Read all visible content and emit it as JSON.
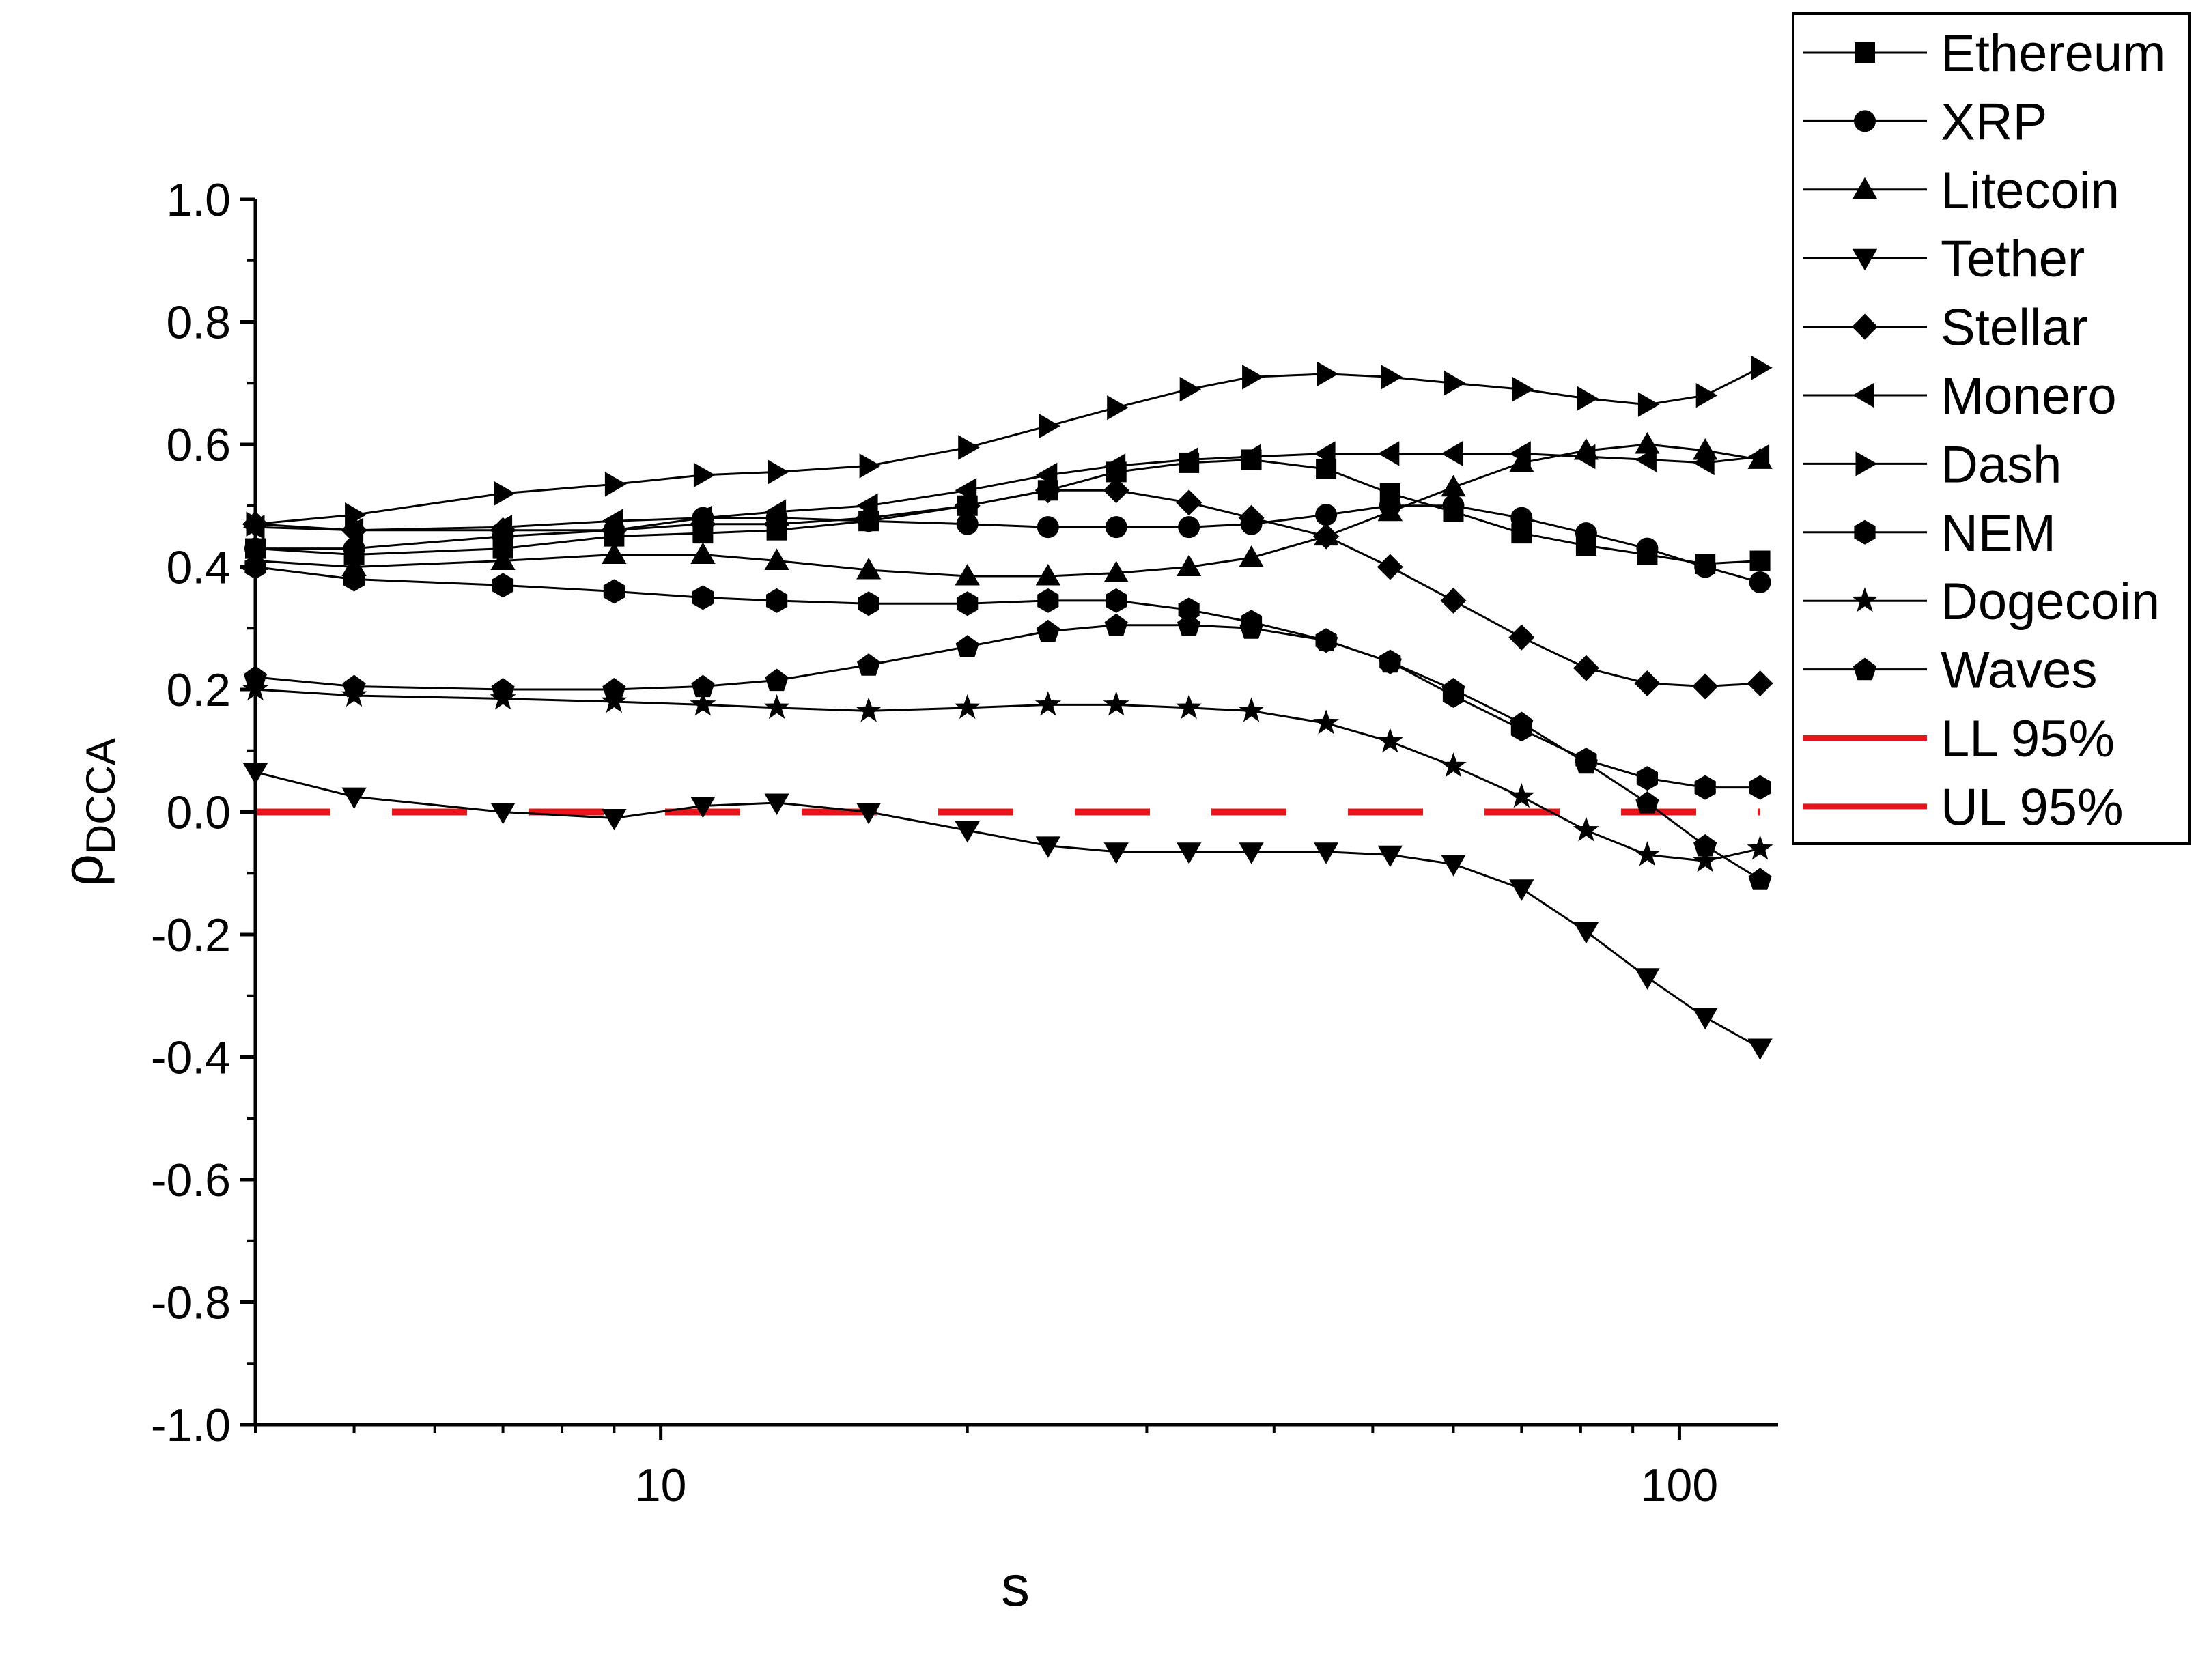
{
  "chart_data": {
    "type": "line",
    "xlabel": "s",
    "ylabel": {
      "main": "ρ",
      "sub": "DCCA"
    },
    "x_scale": "log",
    "xlim": [
      4,
      125
    ],
    "ylim": [
      -1.0,
      1.0
    ],
    "grid": false,
    "legend_position": "top-right",
    "x_ticks": [
      {
        "value": 10,
        "label": "10"
      },
      {
        "value": 100,
        "label": "100"
      }
    ],
    "y_ticks": [
      {
        "value": 1.0,
        "label": "1.0"
      },
      {
        "value": 0.8,
        "label": "0.8"
      },
      {
        "value": 0.6,
        "label": "0.6"
      },
      {
        "value": 0.4,
        "label": "0.4"
      },
      {
        "value": 0.2,
        "label": "0.2"
      },
      {
        "value": 0.0,
        "label": "0.0"
      },
      {
        "value": -0.2,
        "label": "-0.2"
      },
      {
        "value": -0.4,
        "label": "-0.4"
      },
      {
        "value": -0.6,
        "label": "-0.6"
      },
      {
        "value": -0.8,
        "label": "-0.8"
      },
      {
        "value": -1.0,
        "label": "-1.0"
      }
    ],
    "x": [
      4,
      5,
      7,
      9,
      11,
      13,
      16,
      20,
      24,
      28,
      33,
      38,
      45,
      52,
      60,
      70,
      81,
      93,
      106,
      120
    ],
    "series": [
      {
        "name": "Ethereum",
        "marker": "square",
        "color": "#000000",
        "values": [
          0.43,
          0.42,
          0.43,
          0.45,
          0.455,
          0.46,
          0.475,
          0.5,
          0.525,
          0.555,
          0.57,
          0.575,
          0.56,
          0.52,
          0.49,
          0.455,
          0.435,
          0.42,
          0.405,
          0.41
        ]
      },
      {
        "name": "XRP",
        "marker": "circle",
        "color": "#000000",
        "values": [
          0.43,
          0.43,
          0.45,
          0.46,
          0.48,
          0.48,
          0.475,
          0.47,
          0.465,
          0.465,
          0.465,
          0.47,
          0.485,
          0.5,
          0.5,
          0.48,
          0.455,
          0.43,
          0.4,
          0.375
        ]
      },
      {
        "name": "Litecoin",
        "marker": "triangle-up",
        "color": "#000000",
        "values": [
          0.41,
          0.4,
          0.41,
          0.42,
          0.42,
          0.41,
          0.395,
          0.385,
          0.385,
          0.39,
          0.4,
          0.415,
          0.45,
          0.49,
          0.53,
          0.57,
          0.59,
          0.6,
          0.59,
          0.575
        ]
      },
      {
        "name": "Tether",
        "marker": "triangle-down",
        "color": "#000000",
        "values": [
          0.065,
          0.025,
          0.0,
          -0.01,
          0.01,
          0.015,
          0.0,
          -0.03,
          -0.055,
          -0.065,
          -0.065,
          -0.065,
          -0.065,
          -0.07,
          -0.085,
          -0.125,
          -0.195,
          -0.27,
          -0.335,
          -0.385
        ]
      },
      {
        "name": "Stellar",
        "marker": "diamond",
        "color": "#000000",
        "values": [
          0.47,
          0.46,
          0.46,
          0.46,
          0.47,
          0.47,
          0.48,
          0.5,
          0.525,
          0.525,
          0.505,
          0.48,
          0.45,
          0.4,
          0.345,
          0.285,
          0.235,
          0.21,
          0.205,
          0.21
        ]
      },
      {
        "name": "Monero",
        "marker": "triangle-left",
        "color": "#000000",
        "values": [
          0.465,
          0.46,
          0.465,
          0.475,
          0.48,
          0.49,
          0.5,
          0.525,
          0.55,
          0.565,
          0.575,
          0.58,
          0.585,
          0.585,
          0.585,
          0.585,
          0.58,
          0.575,
          0.57,
          0.58
        ]
      },
      {
        "name": "Dash",
        "marker": "triangle-right",
        "color": "#000000",
        "values": [
          0.47,
          0.485,
          0.52,
          0.535,
          0.55,
          0.555,
          0.565,
          0.595,
          0.63,
          0.66,
          0.69,
          0.71,
          0.715,
          0.71,
          0.7,
          0.69,
          0.675,
          0.665,
          0.68,
          0.725
        ]
      },
      {
        "name": "NEM",
        "marker": "hexagon",
        "color": "#000000",
        "values": [
          0.4,
          0.38,
          0.37,
          0.36,
          0.35,
          0.345,
          0.34,
          0.34,
          0.345,
          0.345,
          0.33,
          0.31,
          0.28,
          0.245,
          0.19,
          0.135,
          0.085,
          0.055,
          0.04,
          0.04
        ]
      },
      {
        "name": "Dogecoin",
        "marker": "star",
        "color": "#000000",
        "values": [
          0.2,
          0.19,
          0.185,
          0.18,
          0.175,
          0.17,
          0.165,
          0.17,
          0.175,
          0.175,
          0.17,
          0.165,
          0.145,
          0.115,
          0.075,
          0.025,
          -0.03,
          -0.07,
          -0.08,
          -0.06
        ]
      },
      {
        "name": "Waves",
        "marker": "pentagon",
        "color": "#000000",
        "values": [
          0.22,
          0.205,
          0.2,
          0.2,
          0.205,
          0.215,
          0.24,
          0.27,
          0.295,
          0.305,
          0.305,
          0.3,
          0.28,
          0.245,
          0.2,
          0.145,
          0.08,
          0.015,
          -0.055,
          -0.11
        ]
      },
      {
        "name": "LL 95%",
        "marker": "none",
        "color": "#e8141c",
        "dashed": true,
        "values": [
          0,
          0,
          0,
          0,
          0,
          0,
          0,
          0,
          0,
          0,
          0,
          0,
          0,
          0,
          0,
          0,
          0,
          0,
          0,
          0
        ]
      },
      {
        "name": "UL 95%",
        "marker": "none",
        "color": "#e8141c",
        "dashed": true,
        "values": [
          0,
          0,
          0,
          0,
          0,
          0,
          0,
          0,
          0,
          0,
          0,
          0,
          0,
          0,
          0,
          0,
          0,
          0,
          0,
          0
        ]
      }
    ]
  }
}
